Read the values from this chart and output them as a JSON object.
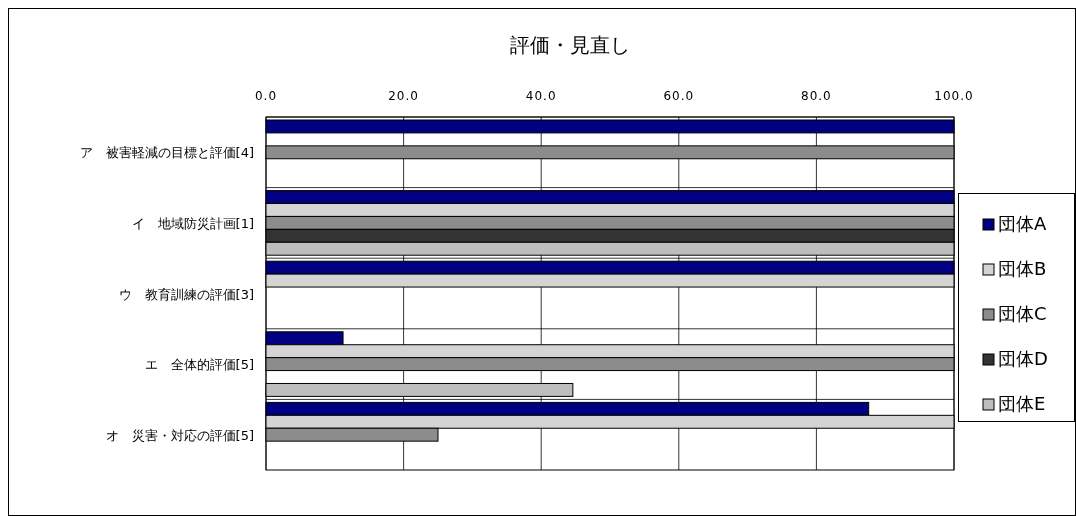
{
  "chart_data": {
    "type": "bar",
    "orientation": "horizontal",
    "title": "評価・見直し",
    "categories": [
      "ア　被害軽減の目標と評価[4]",
      "イ　地域防災計画[1]",
      "ウ　教育訓練の評価[3]",
      "エ　全体的評価[5]",
      "オ　災害・対応の評価[5]"
    ],
    "series": [
      {
        "name": "団体A",
        "color": "#000080",
        "values": [
          100,
          100,
          100,
          11.2,
          87.6
        ]
      },
      {
        "name": "団体B",
        "color": "#d4d4d4",
        "values": [
          null,
          100,
          100,
          100,
          100
        ]
      },
      {
        "name": "団体C",
        "color": "#8c8c8c",
        "values": [
          100,
          100,
          null,
          100,
          25.0
        ]
      },
      {
        "name": "団体D",
        "color": "#333333",
        "values": [
          null,
          100,
          null,
          null,
          null
        ]
      },
      {
        "name": "団体E",
        "color": "#bdbdbd",
        "values": [
          null,
          100,
          null,
          44.6,
          null
        ]
      }
    ],
    "xlim": [
      0,
      100
    ],
    "xticks": [
      {
        "value": 0,
        "label": "0.0"
      },
      {
        "value": 20,
        "label": "20.0"
      },
      {
        "value": 40,
        "label": "40.0"
      },
      {
        "value": 60,
        "label": "60.0"
      },
      {
        "value": 80,
        "label": "80.0"
      },
      {
        "value": 100,
        "label": "100.0"
      }
    ],
    "grid": true,
    "legend": "right"
  }
}
